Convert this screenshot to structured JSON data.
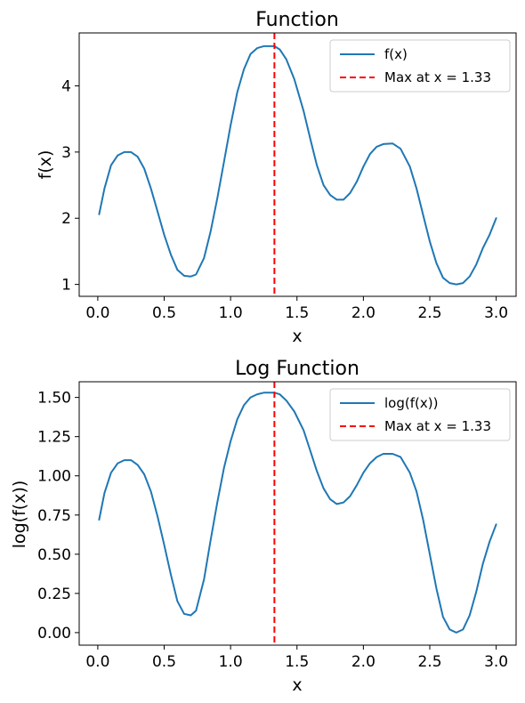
{
  "chart_data": [
    {
      "type": "line",
      "title": "Function",
      "xlabel": "x",
      "ylabel": "f(x)",
      "xlim": [
        -0.14,
        3.15
      ],
      "ylim": [
        0.82,
        4.8
      ],
      "xticks": [
        0.0,
        0.5,
        1.0,
        1.5,
        2.0,
        2.5,
        3.0
      ],
      "xtick_labels": [
        "0.0",
        "0.5",
        "1.0",
        "1.5",
        "2.0",
        "2.5",
        "3.0"
      ],
      "yticks": [
        1,
        2,
        3,
        4
      ],
      "ytick_labels": [
        "1",
        "2",
        "3",
        "4"
      ],
      "grid": false,
      "legend_position": "top-right",
      "series": [
        {
          "name": "f(x)",
          "style": "solid",
          "color": "#1f77b4",
          "x": [
            0.01,
            0.05,
            0.1,
            0.15,
            0.2,
            0.25,
            0.3,
            0.35,
            0.4,
            0.45,
            0.5,
            0.55,
            0.6,
            0.65,
            0.7,
            0.74,
            0.8,
            0.85,
            0.9,
            0.95,
            1.0,
            1.05,
            1.1,
            1.15,
            1.2,
            1.25,
            1.3,
            1.33,
            1.37,
            1.42,
            1.48,
            1.55,
            1.6,
            1.65,
            1.7,
            1.75,
            1.8,
            1.85,
            1.9,
            1.95,
            2.0,
            2.05,
            2.1,
            2.15,
            2.22,
            2.28,
            2.35,
            2.4,
            2.45,
            2.5,
            2.55,
            2.6,
            2.65,
            2.7,
            2.75,
            2.8,
            2.85,
            2.9,
            2.95,
            3.0
          ],
          "y": [
            2.06,
            2.45,
            2.8,
            2.95,
            3.0,
            3.0,
            2.93,
            2.75,
            2.45,
            2.1,
            1.75,
            1.45,
            1.22,
            1.13,
            1.12,
            1.15,
            1.4,
            1.8,
            2.3,
            2.85,
            3.4,
            3.9,
            4.25,
            4.48,
            4.57,
            4.6,
            4.6,
            4.6,
            4.55,
            4.4,
            4.1,
            3.62,
            3.2,
            2.8,
            2.5,
            2.35,
            2.28,
            2.28,
            2.38,
            2.55,
            2.78,
            2.97,
            3.08,
            3.12,
            3.13,
            3.05,
            2.78,
            2.45,
            2.05,
            1.65,
            1.32,
            1.1,
            1.02,
            1.0,
            1.02,
            1.12,
            1.3,
            1.55,
            1.75,
            2.0
          ]
        },
        {
          "name": "Max at x = 1.33",
          "style": "dashed",
          "color": "#ff0000",
          "vline_x": 1.33
        }
      ]
    },
    {
      "type": "line",
      "title": "Log Function",
      "xlabel": "x",
      "ylabel": "log(f(x))",
      "xlim": [
        -0.14,
        3.15
      ],
      "ylim": [
        -0.08,
        1.6
      ],
      "xticks": [
        0.0,
        0.5,
        1.0,
        1.5,
        2.0,
        2.5,
        3.0
      ],
      "xtick_labels": [
        "0.0",
        "0.5",
        "1.0",
        "1.5",
        "2.0",
        "2.5",
        "3.0"
      ],
      "yticks": [
        0.0,
        0.25,
        0.5,
        0.75,
        1.0,
        1.25,
        1.5
      ],
      "ytick_labels": [
        "0.00",
        "0.25",
        "0.50",
        "0.75",
        "1.00",
        "1.25",
        "1.50"
      ],
      "grid": false,
      "legend_position": "top-right",
      "series": [
        {
          "name": "log(f(x))",
          "style": "solid",
          "color": "#1f77b4",
          "x": [
            0.01,
            0.05,
            0.1,
            0.15,
            0.2,
            0.25,
            0.3,
            0.35,
            0.4,
            0.45,
            0.5,
            0.55,
            0.6,
            0.65,
            0.7,
            0.74,
            0.8,
            0.85,
            0.9,
            0.95,
            1.0,
            1.05,
            1.1,
            1.15,
            1.2,
            1.25,
            1.3,
            1.33,
            1.37,
            1.42,
            1.48,
            1.55,
            1.6,
            1.65,
            1.7,
            1.75,
            1.8,
            1.85,
            1.9,
            1.95,
            2.0,
            2.05,
            2.1,
            2.15,
            2.22,
            2.28,
            2.35,
            2.4,
            2.45,
            2.5,
            2.55,
            2.6,
            2.65,
            2.7,
            2.75,
            2.8,
            2.85,
            2.9,
            2.95,
            3.0
          ],
          "y": [
            0.72,
            0.89,
            1.02,
            1.08,
            1.1,
            1.1,
            1.07,
            1.01,
            0.9,
            0.74,
            0.56,
            0.37,
            0.2,
            0.12,
            0.11,
            0.14,
            0.34,
            0.59,
            0.83,
            1.05,
            1.22,
            1.36,
            1.45,
            1.5,
            1.52,
            1.53,
            1.53,
            1.53,
            1.52,
            1.48,
            1.41,
            1.29,
            1.16,
            1.03,
            0.92,
            0.85,
            0.82,
            0.83,
            0.87,
            0.94,
            1.02,
            1.08,
            1.12,
            1.14,
            1.14,
            1.12,
            1.02,
            0.9,
            0.72,
            0.5,
            0.28,
            0.1,
            0.02,
            0.0,
            0.02,
            0.11,
            0.26,
            0.44,
            0.58,
            0.69
          ]
        },
        {
          "name": "Max at x = 1.33",
          "style": "dashed",
          "color": "#ff0000",
          "vline_x": 1.33
        }
      ]
    }
  ]
}
